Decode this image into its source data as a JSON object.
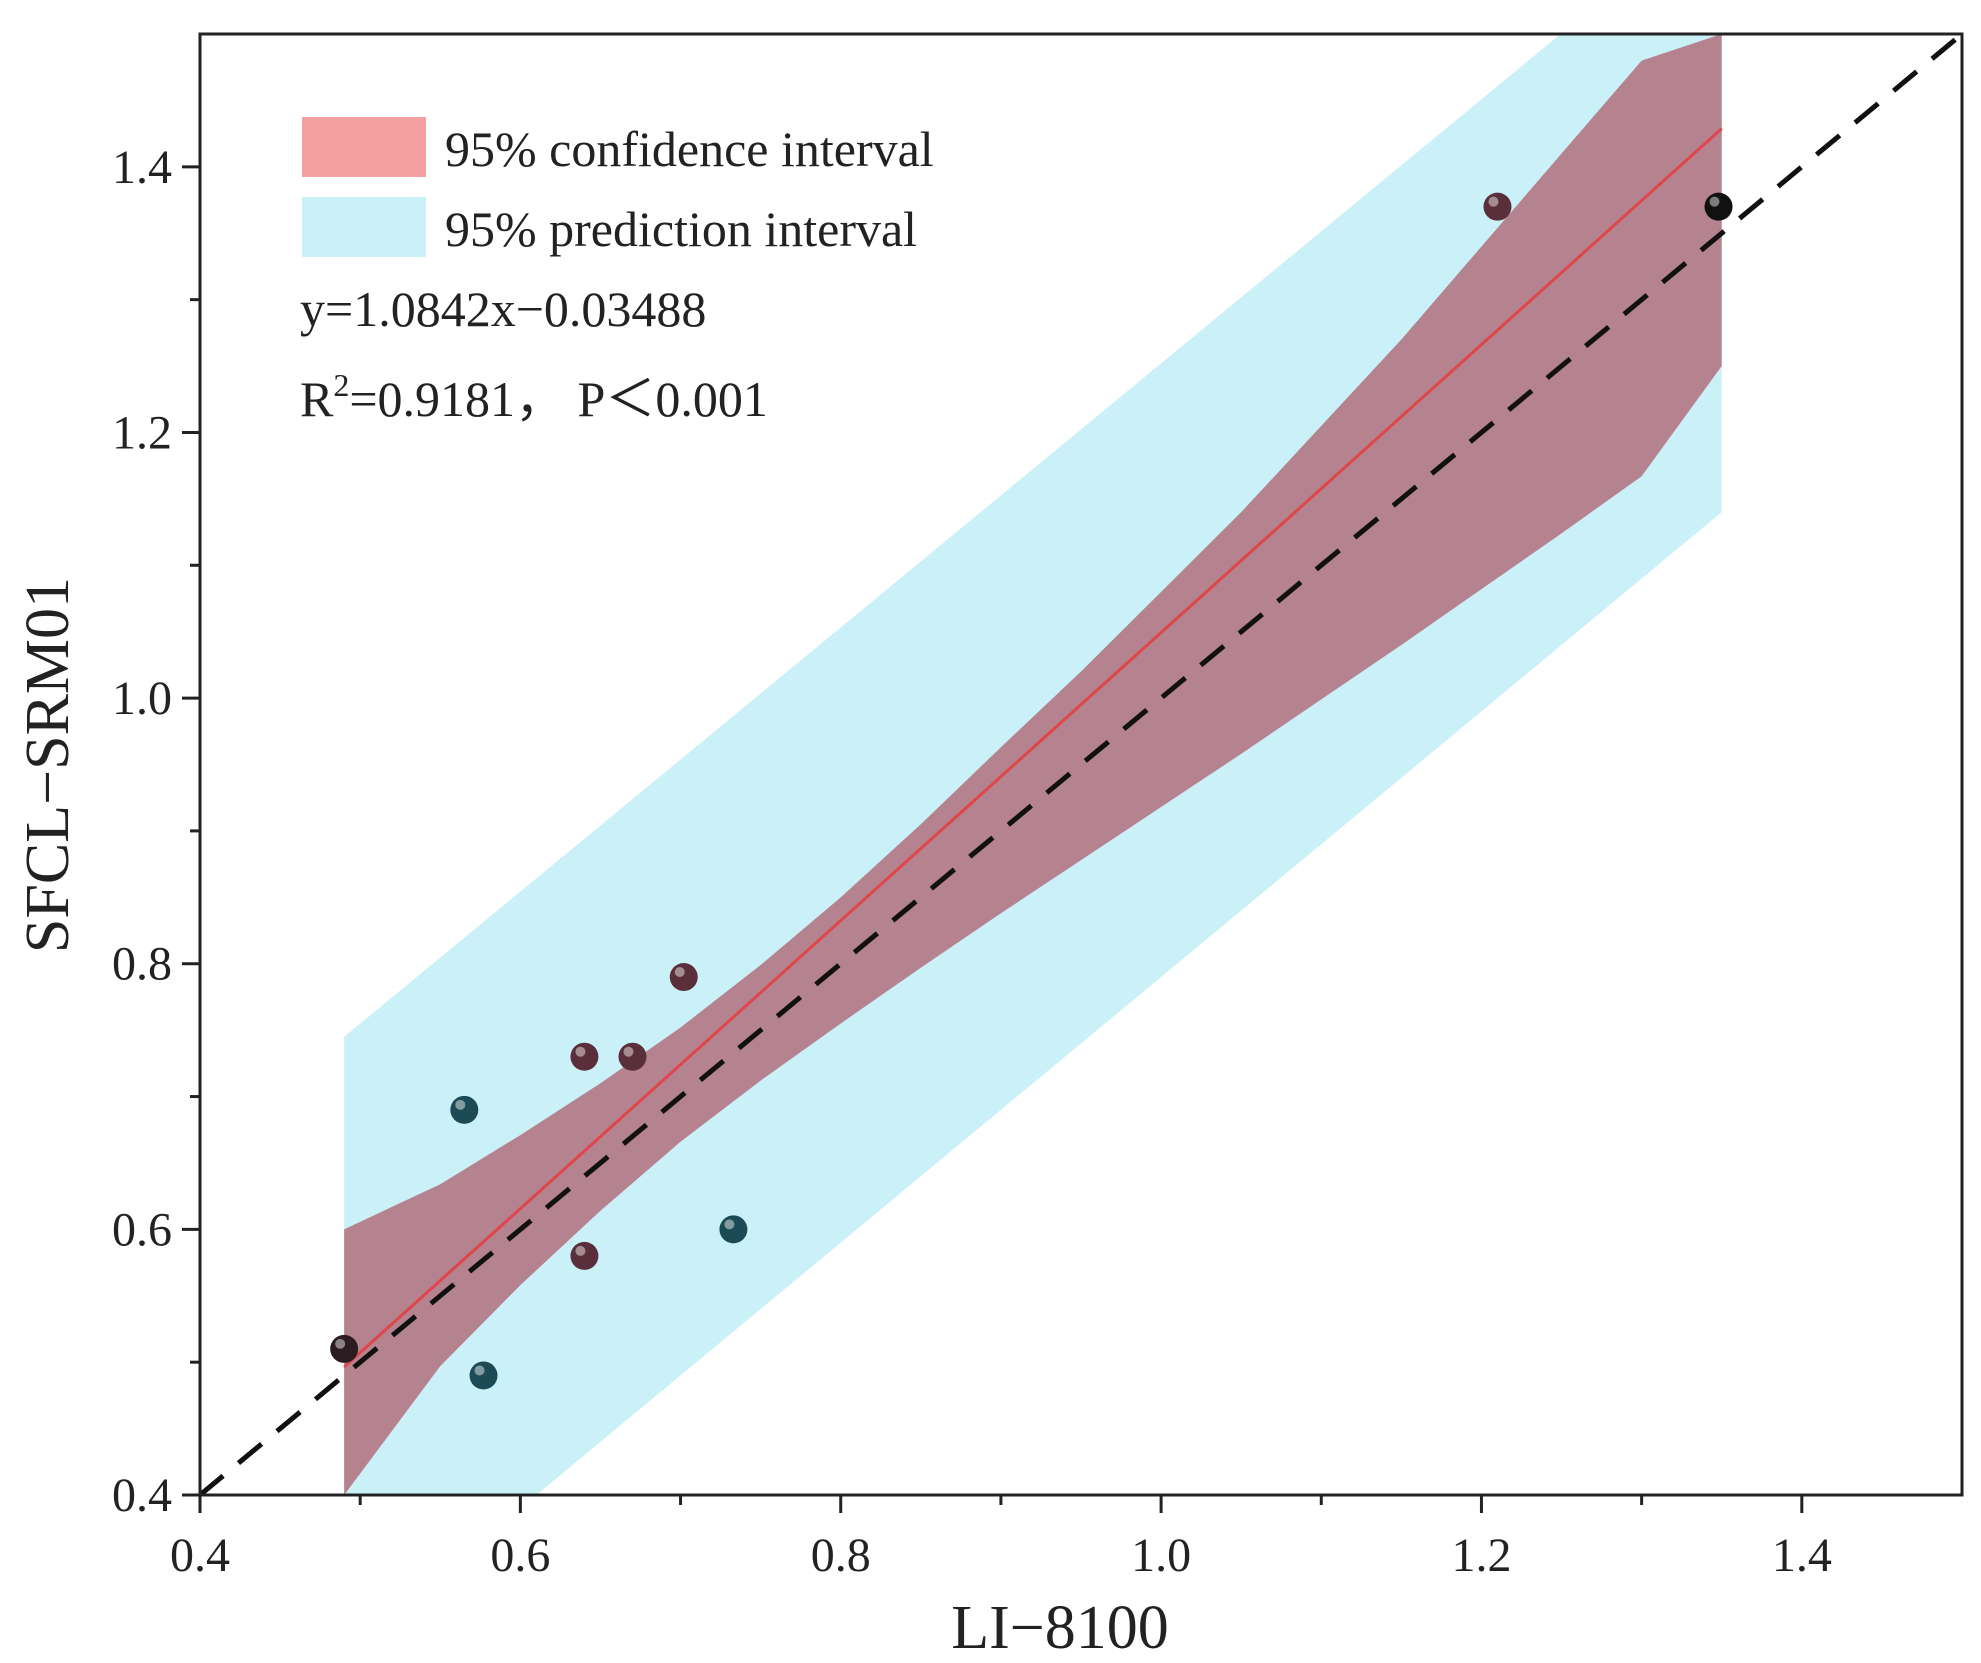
{
  "chart_data": {
    "type": "scatter",
    "title": "",
    "xlabel": "LI−8100",
    "ylabel": "SFCL−SRM01",
    "xlim": [
      0.4,
      1.5
    ],
    "ylim": [
      0.4,
      1.5
    ],
    "x_ticks": [
      0.4,
      0.6,
      0.8,
      1.0,
      1.2,
      1.4
    ],
    "x_tick_labels": [
      "0.4",
      "0.6",
      "0.8",
      "1.0",
      "1.2",
      "1.4"
    ],
    "y_ticks": [
      0.4,
      0.6,
      0.8,
      1.0,
      1.2,
      1.4
    ],
    "y_tick_labels": [
      "0.4",
      "0.6",
      "0.8",
      "1.0",
      "1.2",
      "1.4"
    ],
    "grid": false,
    "legend_position": "top-left",
    "legend": [
      {
        "label": "95% confidence interval",
        "color": "#f4a0a0"
      },
      {
        "label": "95% prediction interval",
        "color": "#cbf1f8"
      }
    ],
    "annotations": {
      "equation": "y=1.0842x−0.03488",
      "r2_prefix": "R",
      "r2_sup": "2",
      "r2_suffix": "=0.9181， P＜0.001"
    },
    "regression": {
      "slope": 1.0842,
      "intercept": -0.03488,
      "x_range": [
        0.49,
        1.35
      ],
      "color": "#e0454a"
    },
    "identity_line": {
      "slope": 1,
      "intercept": 0,
      "style": "dashed",
      "color": "#111111"
    },
    "confidence_band": {
      "color": "#b5828f",
      "x": [
        0.49,
        0.55,
        0.6,
        0.65,
        0.7,
        0.75,
        0.8,
        0.85,
        0.9,
        0.95,
        1.0,
        1.05,
        1.1,
        1.15,
        1.2,
        1.25,
        1.3,
        1.35
      ],
      "upper": [
        0.6,
        0.634,
        0.671,
        0.71,
        0.752,
        0.799,
        0.85,
        0.905,
        0.963,
        1.02,
        1.08,
        1.14,
        1.205,
        1.27,
        1.34,
        1.41,
        1.48,
        1.5
      ],
      "lower": [
        0.4,
        0.497,
        0.558,
        0.614,
        0.666,
        0.712,
        0.755,
        0.797,
        0.838,
        0.878,
        0.918,
        0.958,
        0.999,
        1.04,
        1.082,
        1.124,
        1.167,
        1.25
      ]
    },
    "prediction_band": {
      "color": "#cbf1f8",
      "x": [
        0.49,
        1.35
      ],
      "upper": [
        0.745,
        1.6
      ],
      "lower": [
        0.28,
        1.14
      ]
    },
    "points": [
      {
        "x": 0.49,
        "y": 0.51,
        "color": "#2a1c20"
      },
      {
        "x": 0.565,
        "y": 0.69,
        "color": "#1c4a55"
      },
      {
        "x": 0.577,
        "y": 0.49,
        "color": "#1c4a55"
      },
      {
        "x": 0.64,
        "y": 0.73,
        "color": "#5a2f3b"
      },
      {
        "x": 0.64,
        "y": 0.58,
        "color": "#5a2f3b"
      },
      {
        "x": 0.67,
        "y": 0.73,
        "color": "#5a2f3b"
      },
      {
        "x": 0.702,
        "y": 0.79,
        "color": "#5a2f3b"
      },
      {
        "x": 0.733,
        "y": 0.6,
        "color": "#1c4a55"
      },
      {
        "x": 1.21,
        "y": 1.37,
        "color": "#5a2f3b"
      },
      {
        "x": 1.348,
        "y": 1.37,
        "color": "#111111"
      }
    ]
  }
}
